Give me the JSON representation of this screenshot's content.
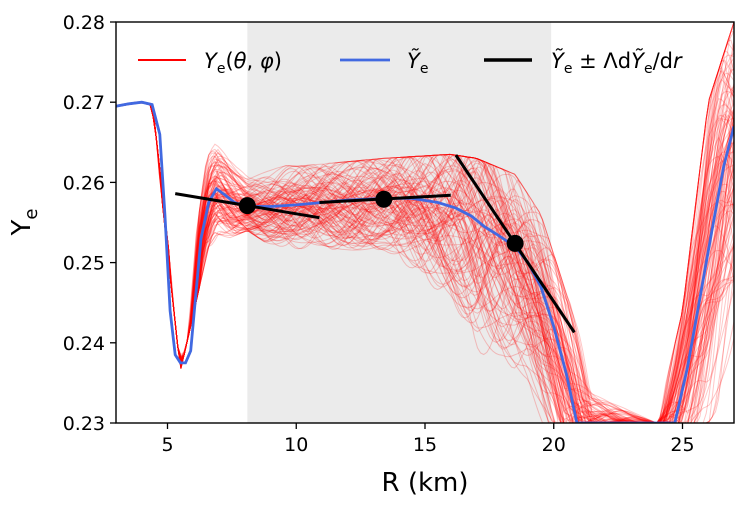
{
  "chart_data": {
    "type": "line",
    "title": "",
    "xlabel": "R (km)",
    "ylabel": "Y_e",
    "xlim": [
      3,
      27
    ],
    "ylim": [
      0.23,
      0.28
    ],
    "xticks": [
      "5",
      "10",
      "15",
      "20",
      "25"
    ],
    "yticks": [
      "0.23",
      "0.24",
      "0.25",
      "0.26",
      "0.27",
      "0.28"
    ],
    "grid": false,
    "legend_placement": "top",
    "shaded_region": {
      "x_start": 8.1,
      "x_end": 19.9,
      "color": "#ebebeb"
    },
    "legend": [
      {
        "label": "Y_e(θ, φ)",
        "color": "#ff0000"
      },
      {
        "label": "Ỹ_e",
        "color": "#4169e1"
      },
      {
        "label": "Ỹ_e ± Λ dỸ_e/dr",
        "color": "#000000"
      }
    ],
    "series": [
      {
        "name": "Ỹ_e",
        "color": "#4169e1",
        "x": [
          3.0,
          3.5,
          4.0,
          4.4,
          4.7,
          4.9,
          5.1,
          5.3,
          5.5,
          5.7,
          5.9,
          6.1,
          6.3,
          6.6,
          6.9,
          7.2,
          7.6,
          8.1,
          9.0,
          10.0,
          11.0,
          12.0,
          13.4,
          14.5,
          15.5,
          16.2,
          16.8,
          17.3,
          17.8,
          18.5,
          19.0,
          19.5,
          20.0,
          20.5,
          20.9,
          24.7,
          25.2,
          25.7,
          26.2,
          26.6,
          27.0
        ],
        "y": [
          0.2695,
          0.2698,
          0.27,
          0.2697,
          0.266,
          0.256,
          0.244,
          0.2385,
          0.2375,
          0.2375,
          0.239,
          0.246,
          0.253,
          0.2575,
          0.2592,
          0.2585,
          0.2575,
          0.257,
          0.257,
          0.2572,
          0.2575,
          0.2578,
          0.258,
          0.258,
          0.2575,
          0.2568,
          0.2558,
          0.2545,
          0.2535,
          0.252,
          0.25,
          0.247,
          0.242,
          0.236,
          0.23,
          0.23,
          0.237,
          0.246,
          0.255,
          0.262,
          0.267
        ]
      }
    ],
    "ensemble": {
      "name": "Y_e(θ, φ)",
      "color": "#ff0000",
      "line_count": 120,
      "envelope_x": [
        3.0,
        4.4,
        5.5,
        6.6,
        8.1,
        10.0,
        13.4,
        16.0,
        17.0,
        18.5,
        19.5,
        20.5,
        21.5,
        24.0,
        25.0,
        26.0,
        27.0
      ],
      "envelope_low": [
        0.2695,
        0.2694,
        0.2365,
        0.252,
        0.254,
        0.25,
        0.249,
        0.238,
        0.23,
        0.23,
        0.23,
        0.23,
        0.23,
        0.23,
        0.23,
        0.23,
        0.235
      ],
      "envelope_high": [
        0.27,
        0.2702,
        0.2385,
        0.2652,
        0.2625,
        0.262,
        0.263,
        0.2635,
        0.263,
        0.261,
        0.256,
        0.246,
        0.238,
        0.23,
        0.244,
        0.27,
        0.28
      ]
    },
    "tangents": [
      {
        "center_x": 8.1,
        "center_y": 0.2571,
        "x0": 5.3,
        "y0": 0.2586,
        "x1": 10.9,
        "y1": 0.2556
      },
      {
        "center_x": 13.4,
        "center_y": 0.2579,
        "x0": 10.9,
        "y0": 0.2575,
        "x1": 16.0,
        "y1": 0.2584
      },
      {
        "center_x": 18.5,
        "center_y": 0.2524,
        "x0": 16.2,
        "y0": 0.2634,
        "x1": 20.8,
        "y1": 0.2413
      }
    ]
  }
}
